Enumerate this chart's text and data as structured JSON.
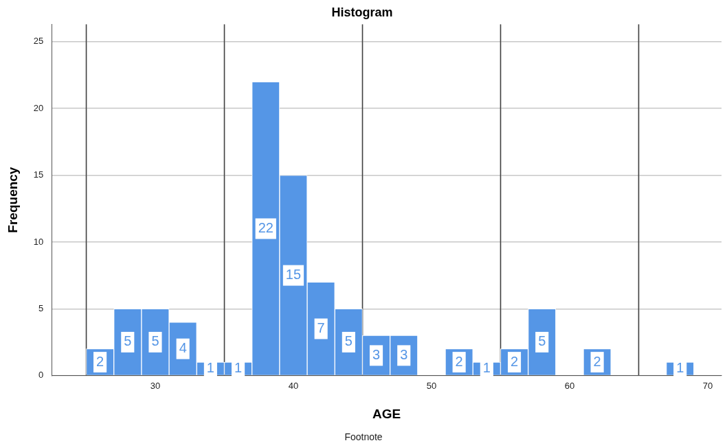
{
  "chart_data": {
    "type": "histogram",
    "title": "Histogram",
    "xlabel": "AGE",
    "ylabel": "Frequency",
    "bins": [
      25,
      27,
      29,
      31,
      33,
      35,
      37,
      39,
      41,
      43,
      45,
      47,
      49,
      51,
      53,
      55,
      57,
      59,
      61,
      63,
      65,
      67,
      69
    ],
    "values": [
      2,
      5,
      5,
      4,
      1,
      1,
      22,
      15,
      7,
      5,
      3,
      3,
      0,
      2,
      1,
      2,
      5,
      0,
      2,
      0,
      0,
      1
    ],
    "color": "#5596e6",
    "xlim": [
      22.5,
      71
    ],
    "xticks": [
      30,
      40,
      50,
      60,
      70
    ],
    "ylim": [
      0,
      26.3
    ],
    "yticks": [
      0,
      5,
      10,
      15,
      20,
      25
    ],
    "value_labels": [
      "2",
      "5",
      "5",
      "4",
      "1",
      "1",
      "22",
      "15",
      "7",
      "5",
      "3",
      "3",
      null,
      "2",
      "1",
      "2",
      "5",
      null,
      "2",
      null,
      null,
      "1"
    ],
    "grid": true,
    "legend": false,
    "ref_lines": [
      {
        "axis": "x",
        "value": 25,
        "color": "#404040"
      },
      {
        "axis": "x",
        "value": 35,
        "color": "#404040"
      },
      {
        "axis": "x",
        "value": 45,
        "color": "#404040"
      },
      {
        "axis": "x",
        "value": 55,
        "color": "#404040"
      },
      {
        "axis": "x",
        "value": 65,
        "color": "#404040"
      }
    ],
    "annotations": [
      "Footnote"
    ]
  }
}
